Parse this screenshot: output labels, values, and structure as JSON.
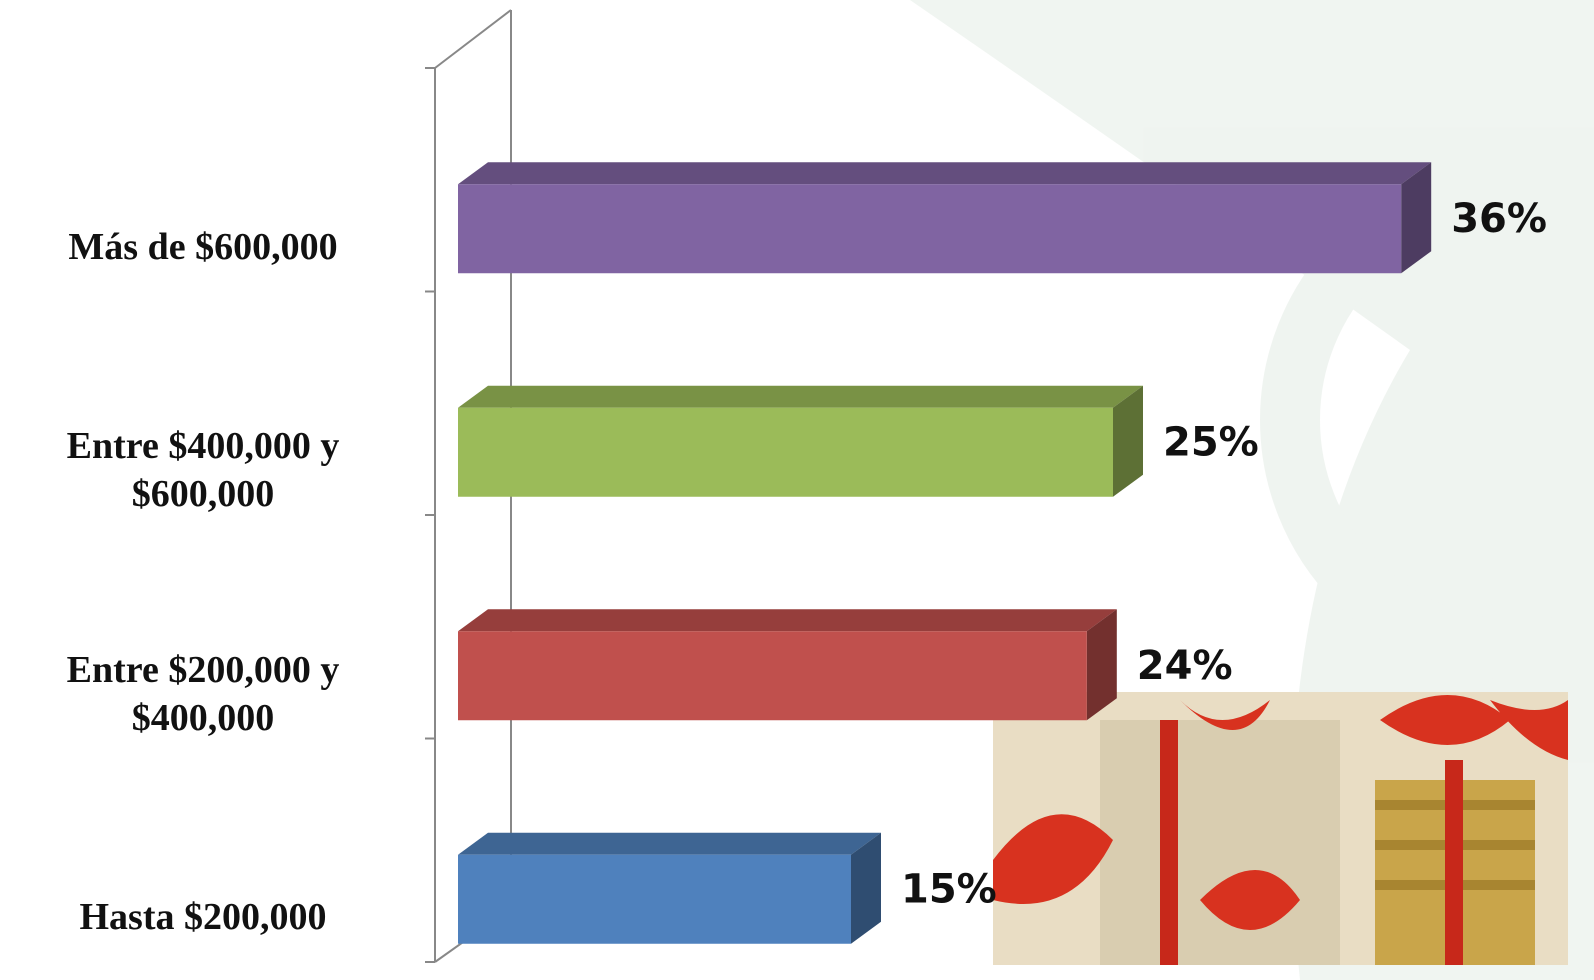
{
  "chart_data": {
    "type": "bar",
    "categories": [
      "Más de $600,000",
      "Entre $400,000 y $600,000",
      "Entre $200,000 y $400,000",
      "Hasta $200,000"
    ],
    "values": [
      36,
      25,
      24,
      15
    ],
    "value_labels": [
      "36%",
      "25%",
      "24%",
      "15%"
    ],
    "colors": [
      "#8064a2",
      "#9bbb59",
      "#c0504d",
      "#4f81bd"
    ]
  }
}
